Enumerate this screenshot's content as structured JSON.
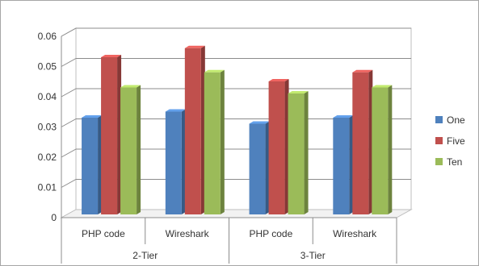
{
  "chart_data": {
    "type": "bar",
    "style": "3d-clustered-column",
    "groups": [
      {
        "label": "2-Tier",
        "categories": [
          "PHP code",
          "Wireshark"
        ]
      },
      {
        "label": "3-Tier",
        "categories": [
          "PHP code",
          "Wireshark"
        ]
      }
    ],
    "categories": [
      "PHP code",
      "Wireshark",
      "PHP code",
      "Wireshark"
    ],
    "series": [
      {
        "name": "One",
        "color": "#4f81bd",
        "values": [
          0.032,
          0.034,
          0.03,
          0.032
        ]
      },
      {
        "name": "Five",
        "color": "#c0504d",
        "values": [
          0.052,
          0.055,
          0.044,
          0.047
        ]
      },
      {
        "name": "Ten",
        "color": "#9bbb59",
        "values": [
          0.042,
          0.047,
          0.04,
          0.042
        ]
      }
    ],
    "y_ticks": [
      "0",
      "0.01",
      "0.02",
      "0.03",
      "0.04",
      "0.05",
      "0.06"
    ],
    "ylim": [
      0,
      0.06
    ],
    "grid": true,
    "legend_position": "right"
  }
}
